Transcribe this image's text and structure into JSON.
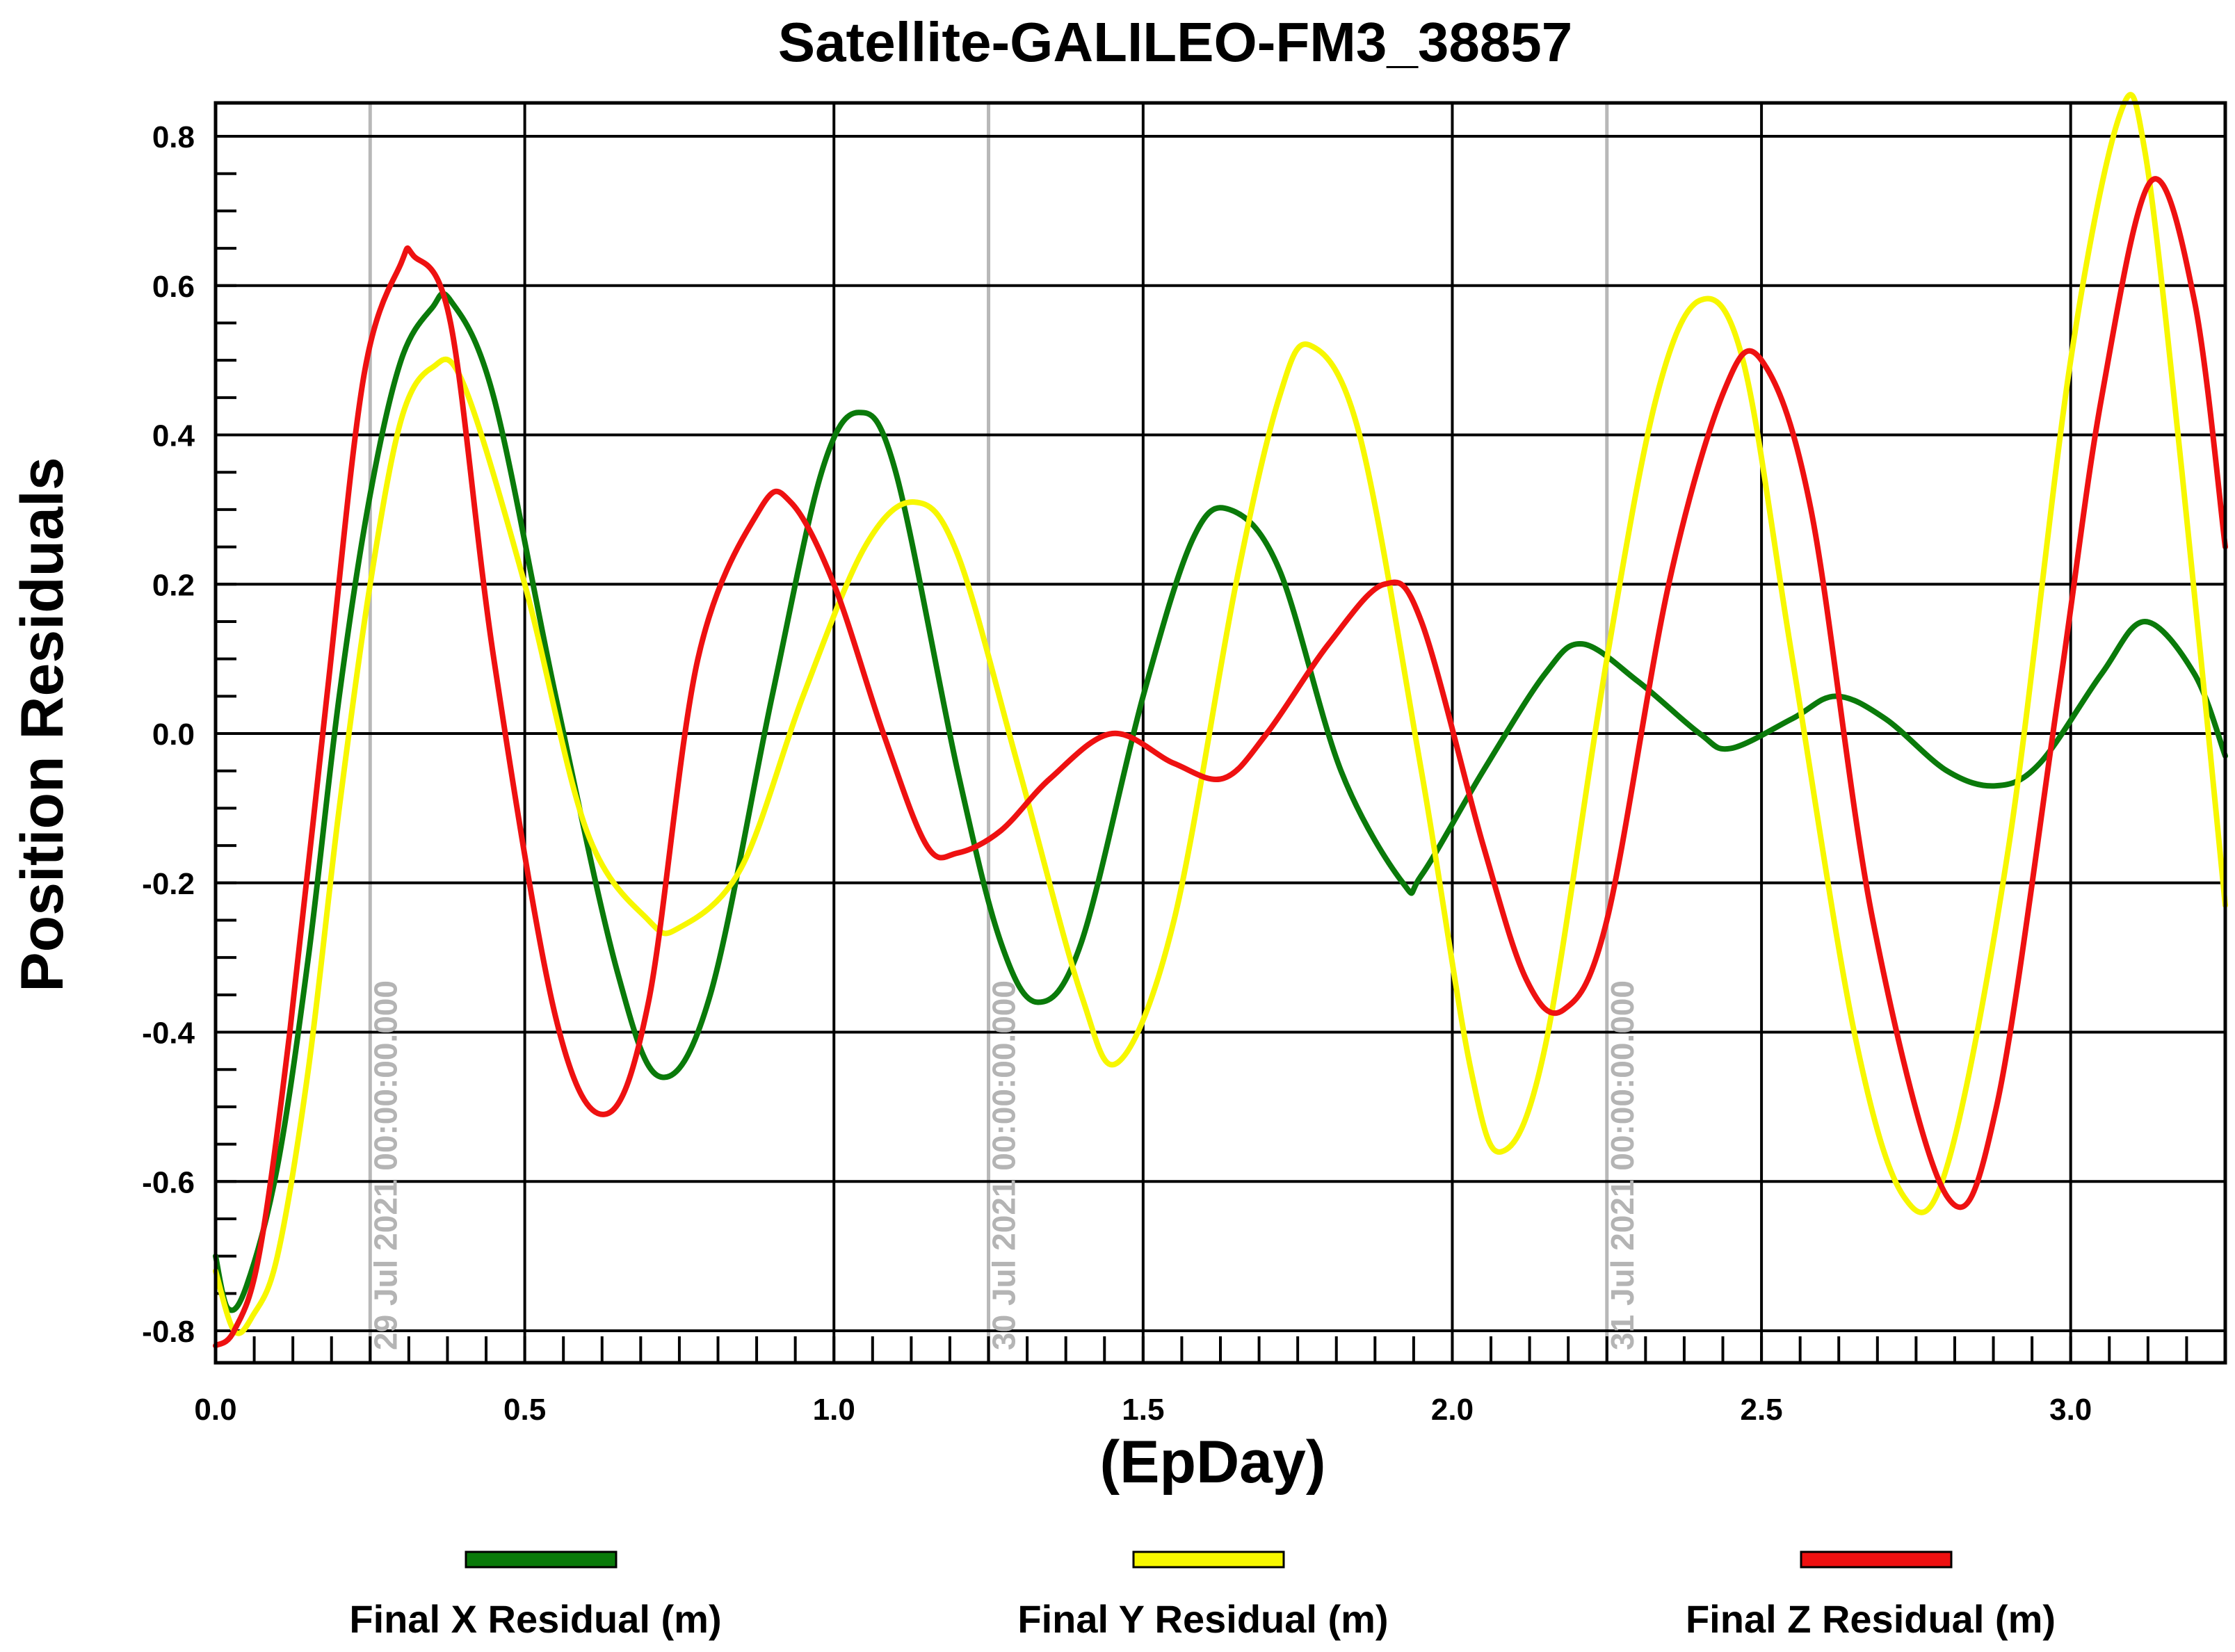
{
  "chart_data": {
    "type": "line",
    "title": "Satellite-GALILEO-FM3_38857",
    "xlabel": "(EpDay)",
    "ylabel": "Position Residuals",
    "xlim": [
      0.0,
      3.25
    ],
    "ylim": [
      -0.8,
      0.8
    ],
    "x_ticks": [
      "0.0",
      "0.5",
      "1.0",
      "1.5",
      "2.0",
      "2.5",
      "3.0"
    ],
    "y_ticks": [
      "0.8",
      "0.6",
      "0.4",
      "0.2",
      "0.0",
      "-0.2",
      "-0.4",
      "-0.6",
      "-0.8"
    ],
    "grid": true,
    "legend_position": "bottom",
    "date_markers": [
      {
        "x": 0.25,
        "label": "29 Jul 2021 00:00:00.000"
      },
      {
        "x": 1.25,
        "label": "30 Jul 2021 00:00:00.000"
      },
      {
        "x": 2.25,
        "label": "31 Jul 2021 00:00:00.000"
      }
    ],
    "series": [
      {
        "name": "Final X Residual (m)",
        "color": "#0a7a0a",
        "x": [
          0.0,
          0.02,
          0.05,
          0.1,
          0.15,
          0.2,
          0.25,
          0.3,
          0.35,
          0.38,
          0.45,
          0.55,
          0.65,
          0.72,
          0.8,
          0.9,
          0.98,
          1.04,
          1.1,
          1.2,
          1.27,
          1.33,
          1.4,
          1.5,
          1.58,
          1.64,
          1.72,
          1.82,
          1.92,
          1.95,
          2.05,
          2.15,
          2.21,
          2.3,
          2.4,
          2.45,
          2.55,
          2.62,
          2.7,
          2.8,
          2.88,
          2.95,
          3.05,
          3.12,
          3.2,
          3.25
        ],
        "values": [
          -0.7,
          -0.77,
          -0.74,
          -0.58,
          -0.3,
          0.05,
          0.32,
          0.5,
          0.57,
          0.58,
          0.45,
          0.05,
          -0.32,
          -0.46,
          -0.35,
          0.05,
          0.35,
          0.43,
          0.35,
          -0.05,
          -0.28,
          -0.36,
          -0.28,
          0.05,
          0.26,
          0.3,
          0.22,
          -0.05,
          -0.2,
          -0.19,
          -0.05,
          0.08,
          0.12,
          0.07,
          0.0,
          -0.02,
          0.02,
          0.05,
          0.02,
          -0.05,
          -0.07,
          -0.04,
          0.08,
          0.15,
          0.08,
          -0.03
        ]
      },
      {
        "name": "Final Y Residual (m)",
        "color": "#f7f700",
        "x": [
          0.0,
          0.03,
          0.06,
          0.1,
          0.15,
          0.2,
          0.25,
          0.3,
          0.35,
          0.4,
          0.5,
          0.6,
          0.7,
          0.75,
          0.85,
          0.95,
          1.05,
          1.13,
          1.2,
          1.3,
          1.4,
          1.46,
          1.55,
          1.65,
          1.72,
          1.77,
          1.85,
          1.95,
          2.03,
          2.08,
          2.15,
          2.25,
          2.33,
          2.4,
          2.47,
          2.55,
          2.65,
          2.73,
          2.8,
          2.9,
          3.0,
          3.08,
          3.12,
          3.18,
          3.25
        ],
        "values": [
          -0.72,
          -0.8,
          -0.78,
          -0.7,
          -0.45,
          -0.1,
          0.2,
          0.42,
          0.49,
          0.47,
          0.2,
          -0.13,
          -0.25,
          -0.26,
          -0.18,
          0.05,
          0.25,
          0.31,
          0.24,
          -0.05,
          -0.35,
          -0.44,
          -0.25,
          0.2,
          0.45,
          0.52,
          0.4,
          -0.05,
          -0.45,
          -0.56,
          -0.42,
          0.1,
          0.45,
          0.58,
          0.5,
          0.1,
          -0.4,
          -0.62,
          -0.58,
          -0.15,
          0.5,
          0.83,
          0.78,
          0.35,
          -0.23
        ]
      },
      {
        "name": "Final Z Residual (m)",
        "color": "#ee1111",
        "x": [
          0.0,
          0.03,
          0.07,
          0.12,
          0.18,
          0.24,
          0.3,
          0.32,
          0.38,
          0.45,
          0.55,
          0.63,
          0.7,
          0.78,
          0.88,
          0.93,
          1.0,
          1.08,
          1.15,
          1.2,
          1.27,
          1.35,
          1.45,
          1.55,
          1.63,
          1.7,
          1.8,
          1.89,
          1.95,
          2.05,
          2.12,
          2.18,
          2.25,
          2.35,
          2.44,
          2.5,
          2.58,
          2.68,
          2.8,
          2.88,
          2.98,
          3.05,
          3.13,
          3.2,
          3.25
        ],
        "values": [
          -0.82,
          -0.8,
          -0.7,
          -0.4,
          0.05,
          0.48,
          0.63,
          0.64,
          0.55,
          0.1,
          -0.38,
          -0.51,
          -0.36,
          0.1,
          0.3,
          0.31,
          0.2,
          0.0,
          -0.15,
          -0.16,
          -0.13,
          -0.06,
          0.0,
          -0.04,
          -0.06,
          0.0,
          0.12,
          0.2,
          0.15,
          -0.15,
          -0.33,
          -0.37,
          -0.25,
          0.2,
          0.46,
          0.5,
          0.3,
          -0.25,
          -0.62,
          -0.5,
          0.05,
          0.45,
          0.74,
          0.58,
          0.25
        ]
      }
    ]
  }
}
